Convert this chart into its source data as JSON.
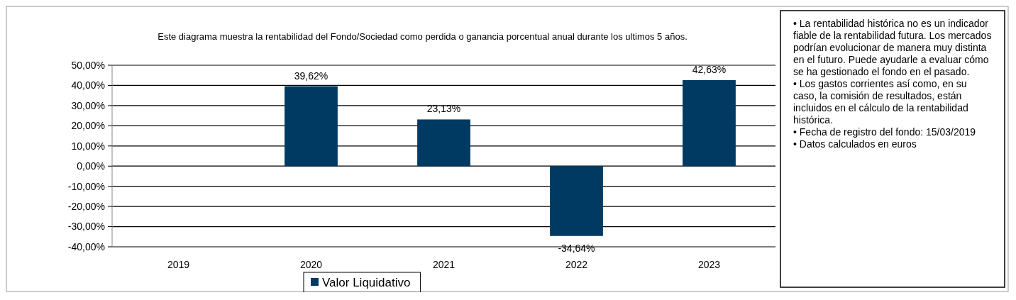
{
  "chart_data": {
    "type": "bar",
    "title": "Este diagrama muestra la rentabilidad del Fondo/Sociedad como perdida o ganancia porcentual anual durante los ultimos 5 años.",
    "categories": [
      "2019",
      "2020",
      "2021",
      "2022",
      "2023"
    ],
    "series": [
      {
        "name": "Valor Liquidativo",
        "color": "#003a63",
        "values": [
          null,
          39.62,
          23.13,
          -34.64,
          42.63
        ],
        "value_labels": [
          null,
          "39,62%",
          "23,13%",
          "-34,64%",
          "42,63%"
        ]
      }
    ],
    "ylim": [
      -40,
      50
    ],
    "yticks": [
      {
        "value": -40,
        "label": "-40,00%"
      },
      {
        "value": -30,
        "label": "-30,00%"
      },
      {
        "value": -20,
        "label": "-20,00%"
      },
      {
        "value": -10,
        "label": "-10,00%"
      },
      {
        "value": 0,
        "label": "0,00%"
      },
      {
        "value": 10,
        "label": "10,00%"
      },
      {
        "value": 20,
        "label": "20,00%"
      },
      {
        "value": 30,
        "label": "30,00%"
      },
      {
        "value": 40,
        "label": "40,00%"
      },
      {
        "value": 50,
        "label": "50,00%"
      }
    ],
    "grid": "y",
    "legend": "bottom",
    "annotations": [
      "• La rentabilidad histórica no es un indicador fiable de la rentabilidad futura. Los mercados podrían evolucionar de manera muy distinta en el futuro. Puede ayudarle a evaluar cómo se ha gestionado el fondo en el pasado.",
      "• Los gastos corrientes así como, en su caso, la comisión de resultados, están incluidos en el cálculo de la rentabilidad histórica.",
      "• Fecha de registro del fondo: 15/03/2019",
      "• Datos calculados en euros"
    ]
  }
}
